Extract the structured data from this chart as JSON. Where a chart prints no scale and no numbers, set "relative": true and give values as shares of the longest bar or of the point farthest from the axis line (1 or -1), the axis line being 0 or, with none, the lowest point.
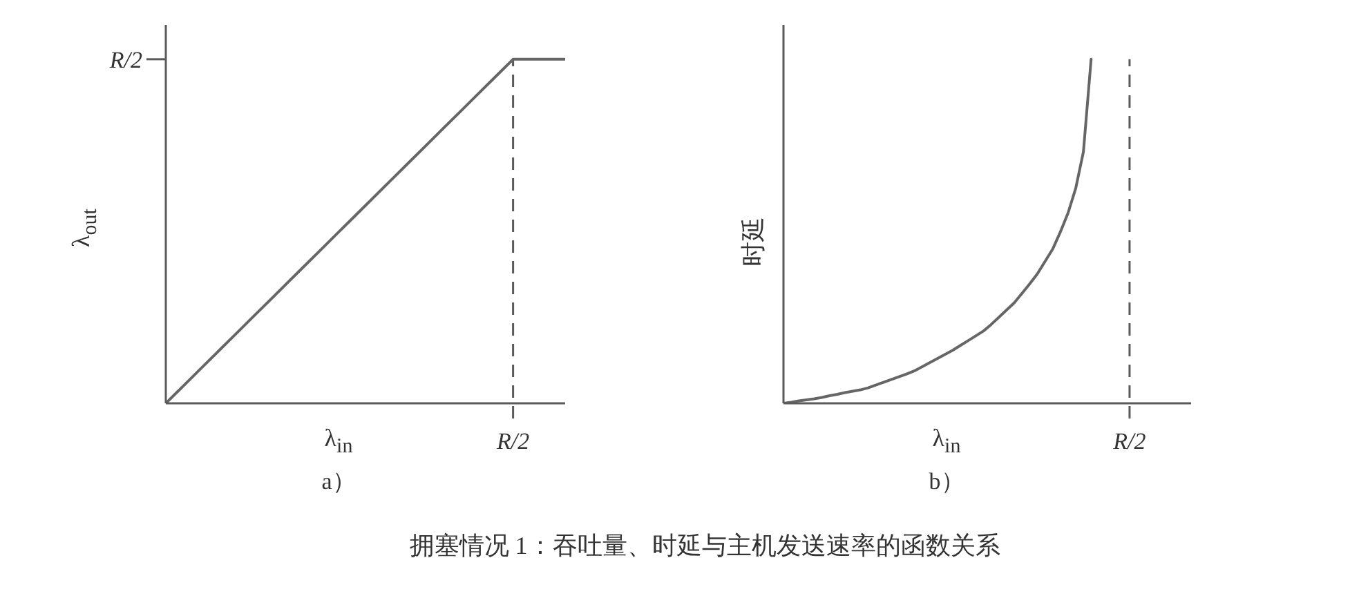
{
  "chart_data": [
    {
      "type": "line",
      "relative": true,
      "xlabel": "λ$_{in}$",
      "ylabel": "λ$_{out}$",
      "categories": [
        null,
        null,
        null,
        null,
        null,
        null,
        null,
        null,
        null,
        null,
        null,
        null,
        null,
        null,
        null,
        null,
        null,
        null,
        null,
        null,
        null,
        null,
        null,
        null
      ],
      "values": [
        0,
        0.05,
        0.1,
        0.15,
        0.2,
        0.25,
        0.3,
        0.35,
        0.4,
        0.45,
        0.5,
        0.55,
        0.6,
        0.65,
        0.7,
        0.75,
        0.8,
        0.85,
        0.9,
        0.95,
        1,
        1,
        1,
        1
      ],
      "color": "#666666",
      "annotations": [
        "a）",
        "R/2",
        "R/2",
        "拥塞情况 1：吞吐量、时延与主机发送速率的函数关系"
      ]
    },
    {
      "type": "line",
      "relative": true,
      "xlabel": "λ$_{in}$",
      "ylabel": "时延",
      "categories": [
        null,
        null,
        null,
        null,
        null,
        null,
        null,
        null,
        null,
        null,
        null,
        null,
        null,
        null,
        null,
        null,
        null,
        null,
        null,
        null,
        null,
        null,
        null,
        null,
        null,
        null,
        null,
        null,
        null,
        null,
        null,
        null,
        null,
        null,
        null,
        null,
        null,
        null,
        null,
        null,
        null,
        null,
        null,
        null,
        null,
        null,
        null,
        null,
        null,
        null,
        null,
        null,
        null,
        null
      ],
      "values": [
        0,
        0.003,
        0.007,
        0.01,
        0.013,
        0.017,
        0.022,
        0.026,
        0.031,
        0.035,
        0.039,
        0.045,
        0.053,
        0.061,
        0.069,
        0.077,
        0.085,
        0.094,
        0.106,
        0.118,
        0.13,
        0.142,
        0.154,
        0.168,
        0.182,
        0.196,
        0.21,
        0.229,
        0.25,
        0.271,
        0.292,
        0.319,
        0.347,
        0.376,
        0.412,
        0.448,
        0.498,
        0.553,
        0.625,
        0.731,
        1,
        null,
        null,
        null,
        null,
        null,
        null,
        null,
        null,
        null,
        null,
        null,
        null,
        null
      ],
      "color": "#666666",
      "annotations": [
        "b）",
        "R/2"
      ]
    }
  ]
}
